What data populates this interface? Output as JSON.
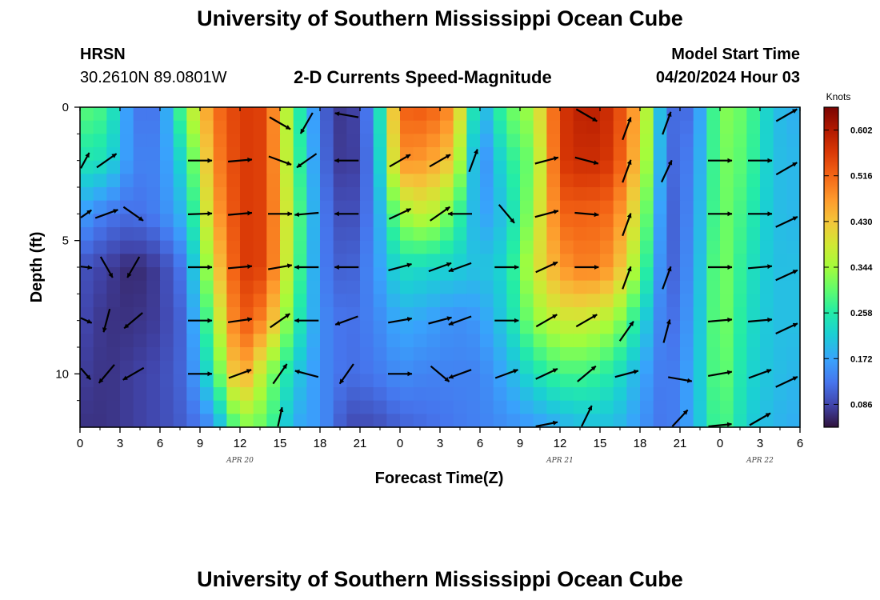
{
  "header": {
    "title": "University of Southern Mississippi Ocean Cube",
    "station": "HRSN",
    "coords": "30.2610N  89.0801W",
    "subtitle": "2-D Currents Speed-Magnitude",
    "model_start_label": "Model Start Time",
    "model_start_value": "04/20/2024 Hour 03"
  },
  "footer": {
    "title": "University of Southern Mississippi Ocean Cube"
  },
  "chart_data": {
    "type": "heatmap",
    "title": "2-D Currents Speed-Magnitude",
    "xlabel": "Forecast Time(Z)",
    "ylabel": "Depth (ft)",
    "ylim": [
      0,
      12
    ],
    "y_inverted": true,
    "hours": [
      0,
      3,
      6,
      9,
      12,
      15,
      18,
      21,
      24,
      27,
      30,
      33,
      36,
      39,
      42,
      45,
      48,
      51,
      54
    ],
    "x_tick_labels": [
      "0",
      "3",
      "6",
      "9",
      "12",
      "15",
      "18",
      "21",
      "0",
      "3",
      "6",
      "9",
      "12",
      "15",
      "18",
      "21",
      "0",
      "3",
      "6"
    ],
    "y_ticks": [
      0,
      5,
      10
    ],
    "y_tick_labels": [
      "0",
      "5",
      "10"
    ],
    "date_labels": [
      {
        "hour": 12,
        "text": "APR 20"
      },
      {
        "hour": 36,
        "text": "APR 21"
      },
      {
        "hour": 51,
        "text": "APR 22"
      }
    ],
    "depths": [
      0,
      2,
      4,
      6,
      8,
      10,
      12
    ],
    "grid_hours": [
      0,
      2,
      4,
      6,
      8,
      10,
      12,
      14,
      16,
      18,
      20,
      22,
      24,
      26,
      28,
      30,
      32,
      34,
      36,
      38,
      40,
      42,
      44,
      46,
      48,
      50,
      52,
      54
    ],
    "speed_knots": [
      [
        0.3,
        0.28,
        0.13,
        0.13,
        0.33,
        0.5,
        0.56,
        0.55,
        0.3,
        0.12,
        0.06,
        0.15,
        0.52,
        0.53,
        0.48,
        0.17,
        0.3,
        0.35,
        0.56,
        0.6,
        0.57,
        0.44,
        0.12,
        0.12,
        0.33,
        0.3,
        0.2,
        0.18
      ],
      [
        0.25,
        0.24,
        0.14,
        0.14,
        0.25,
        0.48,
        0.56,
        0.55,
        0.31,
        0.13,
        0.06,
        0.14,
        0.48,
        0.47,
        0.42,
        0.13,
        0.25,
        0.32,
        0.56,
        0.58,
        0.56,
        0.42,
        0.11,
        0.14,
        0.32,
        0.29,
        0.2,
        0.19
      ],
      [
        0.17,
        0.13,
        0.12,
        0.14,
        0.2,
        0.45,
        0.56,
        0.55,
        0.33,
        0.14,
        0.08,
        0.14,
        0.34,
        0.38,
        0.3,
        0.16,
        0.21,
        0.35,
        0.52,
        0.52,
        0.51,
        0.37,
        0.1,
        0.15,
        0.32,
        0.27,
        0.2,
        0.19
      ],
      [
        0.1,
        0.08,
        0.06,
        0.08,
        0.14,
        0.4,
        0.56,
        0.55,
        0.32,
        0.14,
        0.1,
        0.15,
        0.24,
        0.23,
        0.22,
        0.2,
        0.23,
        0.38,
        0.47,
        0.5,
        0.47,
        0.32,
        0.1,
        0.16,
        0.33,
        0.25,
        0.2,
        0.2
      ],
      [
        0.09,
        0.07,
        0.07,
        0.08,
        0.12,
        0.33,
        0.54,
        0.48,
        0.28,
        0.15,
        0.12,
        0.14,
        0.18,
        0.17,
        0.15,
        0.16,
        0.22,
        0.33,
        0.38,
        0.38,
        0.35,
        0.24,
        0.11,
        0.17,
        0.33,
        0.24,
        0.2,
        0.2
      ],
      [
        0.08,
        0.07,
        0.08,
        0.09,
        0.12,
        0.26,
        0.48,
        0.34,
        0.22,
        0.15,
        0.12,
        0.13,
        0.15,
        0.14,
        0.14,
        0.14,
        0.18,
        0.24,
        0.28,
        0.28,
        0.25,
        0.18,
        0.12,
        0.18,
        0.32,
        0.23,
        0.2,
        0.19
      ],
      [
        0.07,
        0.07,
        0.08,
        0.09,
        0.11,
        0.15,
        0.32,
        0.3,
        0.18,
        0.16,
        0.09,
        0.09,
        0.11,
        0.12,
        0.13,
        0.14,
        0.15,
        0.16,
        0.18,
        0.2,
        0.2,
        0.16,
        0.12,
        0.18,
        0.3,
        0.22,
        0.19,
        0.18
      ]
    ],
    "vectors": [
      {
        "hour": 0,
        "depth": 2,
        "angle": -40
      },
      {
        "hour": 0,
        "depth": 4,
        "angle": -18
      },
      {
        "hour": 0,
        "depth": 6,
        "angle": 3
      },
      {
        "hour": 0,
        "depth": 8,
        "angle": 12
      },
      {
        "hour": 0,
        "depth": 10,
        "angle": 28
      },
      {
        "hour": 2,
        "depth": 2,
        "angle": -35
      },
      {
        "hour": 2,
        "depth": 4,
        "angle": -20
      },
      {
        "hour": 2,
        "depth": 6,
        "angle": 60
      },
      {
        "hour": 2,
        "depth": 8,
        "angle": 105
      },
      {
        "hour": 2,
        "depth": 10,
        "angle": 130
      },
      {
        "hour": 4,
        "depth": 4,
        "angle": 35
      },
      {
        "hour": 4,
        "depth": 6,
        "angle": 120
      },
      {
        "hour": 4,
        "depth": 8,
        "angle": 140
      },
      {
        "hour": 4,
        "depth": 10,
        "angle": 150
      },
      {
        "hour": 9,
        "depth": 2,
        "angle": 0
      },
      {
        "hour": 9,
        "depth": 4,
        "angle": -2
      },
      {
        "hour": 9,
        "depth": 6,
        "angle": 0
      },
      {
        "hour": 9,
        "depth": 8,
        "angle": 0
      },
      {
        "hour": 9,
        "depth": 10,
        "angle": 0
      },
      {
        "hour": 12,
        "depth": 2,
        "angle": -5
      },
      {
        "hour": 12,
        "depth": 4,
        "angle": -5
      },
      {
        "hour": 12,
        "depth": 6,
        "angle": -5
      },
      {
        "hour": 12,
        "depth": 8,
        "angle": -8
      },
      {
        "hour": 12,
        "depth": 10,
        "angle": -20
      },
      {
        "hour": 15,
        "depth": 0.6,
        "angle": 30
      },
      {
        "hour": 15,
        "depth": 2,
        "angle": 20
      },
      {
        "hour": 15,
        "depth": 4,
        "angle": 0
      },
      {
        "hour": 15,
        "depth": 6,
        "angle": -10
      },
      {
        "hour": 15,
        "depth": 8,
        "angle": -35
      },
      {
        "hour": 15,
        "depth": 10,
        "angle": -55
      },
      {
        "hour": 15,
        "depth": 11.7,
        "angle": -80
      },
      {
        "hour": 17,
        "depth": 0.6,
        "angle": 120
      },
      {
        "hour": 17,
        "depth": 2,
        "angle": 145
      },
      {
        "hour": 17,
        "depth": 4,
        "angle": 175
      },
      {
        "hour": 17,
        "depth": 6,
        "angle": 180
      },
      {
        "hour": 17,
        "depth": 8,
        "angle": 180
      },
      {
        "hour": 17,
        "depth": 10,
        "angle": 195
      },
      {
        "hour": 20,
        "depth": 0.3,
        "angle": 190
      },
      {
        "hour": 20,
        "depth": 2,
        "angle": 180
      },
      {
        "hour": 20,
        "depth": 4,
        "angle": 180
      },
      {
        "hour": 20,
        "depth": 6,
        "angle": 180
      },
      {
        "hour": 20,
        "depth": 8,
        "angle": 160
      },
      {
        "hour": 20,
        "depth": 10,
        "angle": 125
      },
      {
        "hour": 24,
        "depth": 2,
        "angle": -30
      },
      {
        "hour": 24,
        "depth": 4,
        "angle": -25
      },
      {
        "hour": 24,
        "depth": 6,
        "angle": -15
      },
      {
        "hour": 24,
        "depth": 8,
        "angle": -10
      },
      {
        "hour": 24,
        "depth": 10,
        "angle": 0
      },
      {
        "hour": 27,
        "depth": 2,
        "angle": -30
      },
      {
        "hour": 27,
        "depth": 4,
        "angle": -35
      },
      {
        "hour": 27,
        "depth": 6,
        "angle": -20
      },
      {
        "hour": 27,
        "depth": 8,
        "angle": -15
      },
      {
        "hour": 27,
        "depth": 10,
        "angle": 40
      },
      {
        "hour": 29.5,
        "depth": 2,
        "angle": -70
      },
      {
        "hour": 28.5,
        "depth": 4,
        "angle": 180
      },
      {
        "hour": 28.5,
        "depth": 6,
        "angle": 160
      },
      {
        "hour": 28.5,
        "depth": 8,
        "angle": 160
      },
      {
        "hour": 28.5,
        "depth": 10,
        "angle": 160
      },
      {
        "hour": 32,
        "depth": 4,
        "angle": 50
      },
      {
        "hour": 32,
        "depth": 6,
        "angle": 0
      },
      {
        "hour": 32,
        "depth": 8,
        "angle": 0
      },
      {
        "hour": 32,
        "depth": 10,
        "angle": -20
      },
      {
        "hour": 35,
        "depth": 2,
        "angle": -15
      },
      {
        "hour": 35,
        "depth": 4,
        "angle": -15
      },
      {
        "hour": 35,
        "depth": 6,
        "angle": -25
      },
      {
        "hour": 35,
        "depth": 8,
        "angle": -30
      },
      {
        "hour": 35,
        "depth": 10,
        "angle": -25
      },
      {
        "hour": 35,
        "depth": 12,
        "angle": -25
      },
      {
        "hour": 38,
        "depth": 0.3,
        "angle": 30
      },
      {
        "hour": 38,
        "depth": 2,
        "angle": 15
      },
      {
        "hour": 38,
        "depth": 4,
        "angle": 5
      },
      {
        "hour": 38,
        "depth": 6,
        "angle": 0
      },
      {
        "hour": 38,
        "depth": 8,
        "angle": -30
      },
      {
        "hour": 38,
        "depth": 10,
        "angle": -40
      },
      {
        "hour": 38,
        "depth": 11.6,
        "angle": -65
      },
      {
        "hour": 41,
        "depth": 0.8,
        "angle": -70
      },
      {
        "hour": 41,
        "depth": 2.4,
        "angle": -70
      },
      {
        "hour": 41,
        "depth": 4.4,
        "angle": -70
      },
      {
        "hour": 41,
        "depth": 6.4,
        "angle": -70
      },
      {
        "hour": 41,
        "depth": 8.4,
        "angle": -55
      },
      {
        "hour": 41,
        "depth": 10,
        "angle": -15
      },
      {
        "hour": 44,
        "depth": 0.6,
        "angle": -70
      },
      {
        "hour": 44,
        "depth": 2.4,
        "angle": -65
      },
      {
        "hour": 44,
        "depth": 6.4,
        "angle": -70
      },
      {
        "hour": 44,
        "depth": 8.4,
        "angle": -75
      },
      {
        "hour": 45,
        "depth": 10.2,
        "angle": 10
      },
      {
        "hour": 45,
        "depth": 11.7,
        "angle": -50
      },
      {
        "hour": 48,
        "depth": 2,
        "angle": 0
      },
      {
        "hour": 48,
        "depth": 4,
        "angle": 0
      },
      {
        "hour": 48,
        "depth": 6,
        "angle": 0
      },
      {
        "hour": 48,
        "depth": 8,
        "angle": -5
      },
      {
        "hour": 48,
        "depth": 10,
        "angle": -10
      },
      {
        "hour": 48,
        "depth": 12,
        "angle": -15
      },
      {
        "hour": 51,
        "depth": 2,
        "angle": 0
      },
      {
        "hour": 51,
        "depth": 4,
        "angle": 0
      },
      {
        "hour": 51,
        "depth": 6,
        "angle": -5
      },
      {
        "hour": 51,
        "depth": 8,
        "angle": -5
      },
      {
        "hour": 51,
        "depth": 10,
        "angle": -20
      },
      {
        "hour": 51,
        "depth": 11.7,
        "angle": -30
      },
      {
        "hour": 53,
        "depth": 0.3,
        "angle": -30
      },
      {
        "hour": 53,
        "depth": 2.3,
        "angle": -30
      },
      {
        "hour": 53,
        "depth": 4.3,
        "angle": -25
      },
      {
        "hour": 53,
        "depth": 6.3,
        "angle": -25
      },
      {
        "hour": 53,
        "depth": 8.3,
        "angle": -25
      },
      {
        "hour": 53,
        "depth": 10.3,
        "angle": -25
      }
    ],
    "colorbar": {
      "label": "Knots",
      "min": 0.043,
      "max": 0.645,
      "ticks": [
        0.086,
        0.172,
        0.258,
        0.344,
        0.43,
        0.516,
        0.602
      ],
      "tick_labels": [
        "0.086",
        "0.172",
        "0.258",
        "0.344",
        "0.430",
        "0.516",
        "0.602"
      ]
    }
  }
}
